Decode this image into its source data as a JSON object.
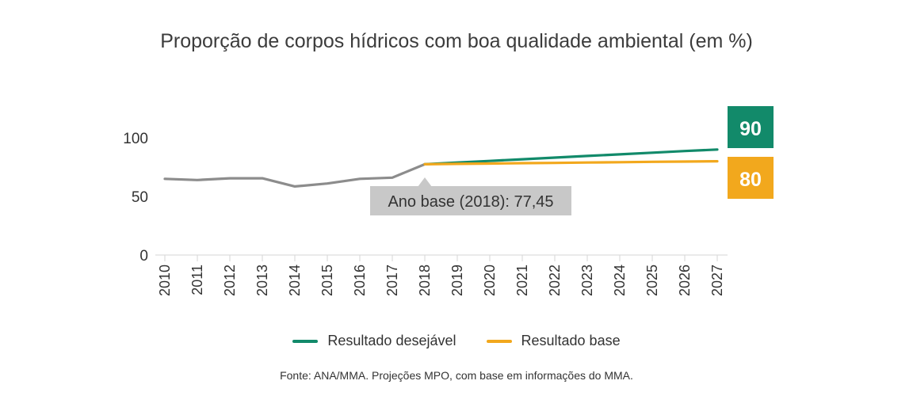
{
  "chart_data": {
    "type": "line",
    "title": "Proporção de corpos hídricos com boa qualidade ambiental (em %)",
    "x": [
      "2010",
      "2011",
      "2012",
      "2013",
      "2014",
      "2015",
      "2016",
      "2017",
      "2018",
      "2019",
      "2020",
      "2021",
      "2022",
      "2023",
      "2024",
      "2025",
      "2026",
      "2027"
    ],
    "y_ticks": [
      "0",
      "50",
      "100"
    ],
    "ylim": [
      0,
      100
    ],
    "grid": false,
    "series": [
      {
        "key": "historico",
        "color": "#8c8c8c",
        "x": [
          "2010",
          "2011",
          "2012",
          "2013",
          "2014",
          "2015",
          "2016",
          "2017",
          "2018"
        ],
        "values": [
          65,
          64,
          65.5,
          65.5,
          58.5,
          61,
          65,
          66,
          77.45
        ]
      },
      {
        "key": "desejavel",
        "name": "Resultado desejável",
        "color": "#128a6a",
        "x": [
          "2018",
          "2019",
          "2020",
          "2021",
          "2022",
          "2023",
          "2024",
          "2025",
          "2026",
          "2027"
        ],
        "values": [
          77.45,
          78.9,
          80.3,
          81.7,
          83.1,
          84.5,
          85.9,
          87.3,
          88.7,
          90
        ]
      },
      {
        "key": "base",
        "name": "Resultado base",
        "color": "#f2a81d",
        "x": [
          "2018",
          "2019",
          "2020",
          "2021",
          "2022",
          "2023",
          "2024",
          "2025",
          "2026",
          "2027"
        ],
        "values": [
          77.45,
          77.75,
          78.05,
          78.35,
          78.6,
          78.9,
          79.2,
          79.5,
          79.75,
          80
        ]
      }
    ],
    "annotations": {
      "base_year": {
        "text": "Ano base (2018): 77,45",
        "x": "2018",
        "y": 77.45
      },
      "end_desejavel": {
        "text": "90",
        "color": "#128a6a"
      },
      "end_base": {
        "text": "80",
        "color": "#f2a81d"
      }
    },
    "legend": {
      "position": "bottom-center",
      "items": [
        {
          "label": "Resultado desejável",
          "color": "#128a6a"
        },
        {
          "label": "Resultado base",
          "color": "#f2a81d"
        }
      ]
    },
    "source": "Fonte: ANA/MMA. Projeções MPO, com base em informações do MMA."
  }
}
